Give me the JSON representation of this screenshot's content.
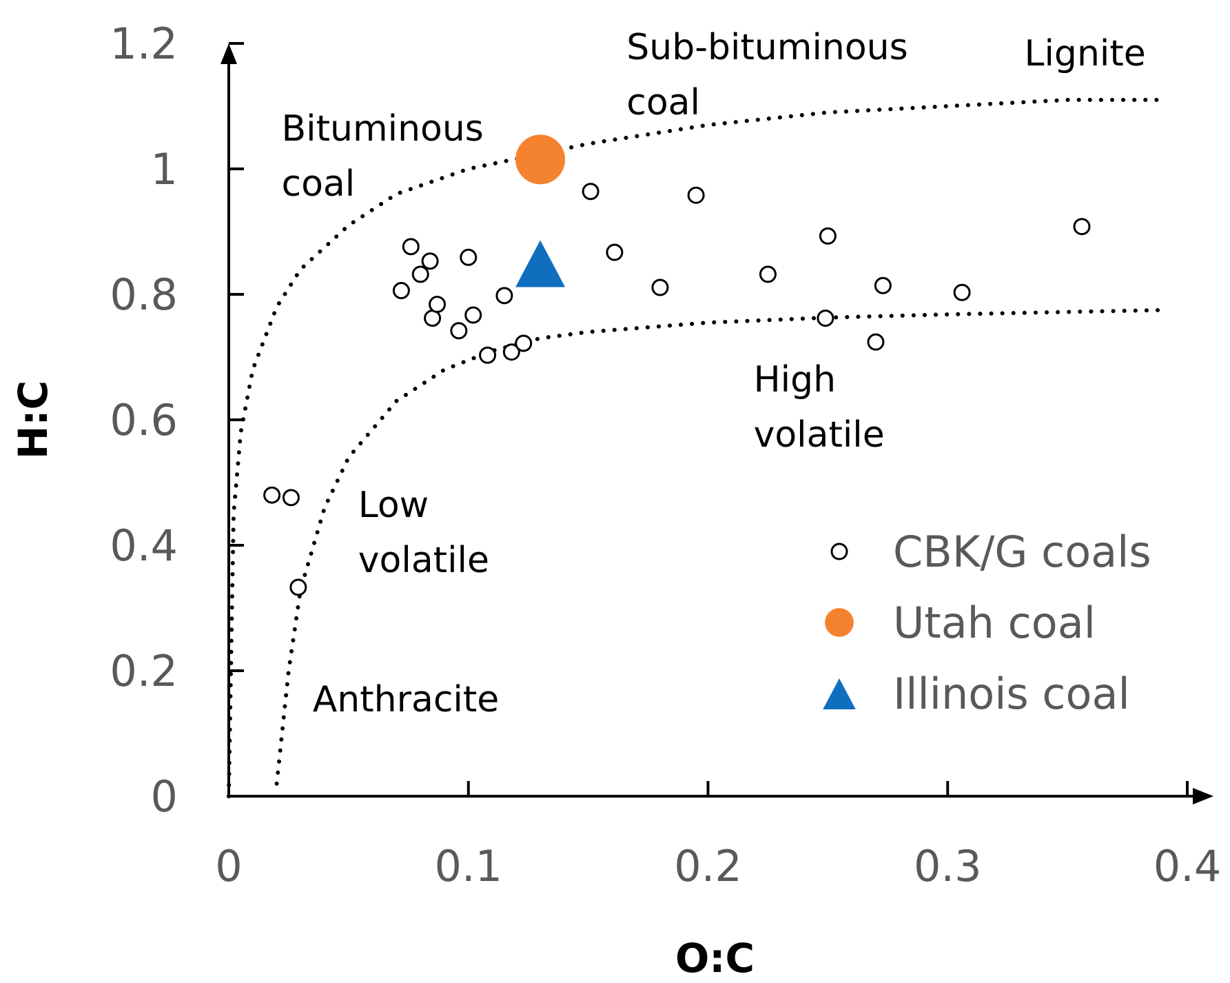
{
  "chart_data": {
    "type": "scatter",
    "title": "",
    "xlabel": "O:C",
    "ylabel": "H:C",
    "xlim": [
      0,
      0.4
    ],
    "ylim": [
      0,
      1.2
    ],
    "x_ticks": [
      "0",
      "0.1",
      "0.2",
      "0.3",
      "0.4"
    ],
    "y_ticks": [
      "0",
      "0.2",
      "0.4",
      "0.6",
      "0.8",
      "1",
      "1.2"
    ],
    "grid": false,
    "legend_position": "lower-right",
    "series": [
      {
        "name": "CBK/G coals",
        "marker": "open-circle",
        "color": "#000000",
        "points": [
          [
            0.018,
            0.48
          ],
          [
            0.026,
            0.476
          ],
          [
            0.029,
            0.333
          ],
          [
            0.072,
            0.806
          ],
          [
            0.076,
            0.876
          ],
          [
            0.08,
            0.832
          ],
          [
            0.084,
            0.853
          ],
          [
            0.085,
            0.762
          ],
          [
            0.087,
            0.784
          ],
          [
            0.096,
            0.742
          ],
          [
            0.1,
            0.859
          ],
          [
            0.102,
            0.767
          ],
          [
            0.108,
            0.703
          ],
          [
            0.115,
            0.798
          ],
          [
            0.118,
            0.708
          ],
          [
            0.123,
            0.722
          ],
          [
            0.151,
            0.964
          ],
          [
            0.161,
            0.867
          ],
          [
            0.18,
            0.811
          ],
          [
            0.195,
            0.958
          ],
          [
            0.225,
            0.832
          ],
          [
            0.249,
            0.762
          ],
          [
            0.25,
            0.893
          ],
          [
            0.27,
            0.724
          ],
          [
            0.273,
            0.814
          ],
          [
            0.306,
            0.803
          ],
          [
            0.356,
            0.908
          ]
        ]
      },
      {
        "name": "Utah coal",
        "marker": "filled-circle",
        "color": "#F5822F",
        "points": [
          [
            0.13,
            1.015
          ]
        ]
      },
      {
        "name": "Illinois coal",
        "marker": "filled-triangle",
        "color": "#0F6EBE",
        "points": [
          [
            0.13,
            0.84
          ]
        ]
      }
    ],
    "boundary_curves": [
      {
        "name": "upper boundary",
        "points": [
          [
            0.0,
            0.0
          ],
          [
            0.002,
            0.45
          ],
          [
            0.005,
            0.58
          ],
          [
            0.01,
            0.68
          ],
          [
            0.02,
            0.78
          ],
          [
            0.03,
            0.84
          ],
          [
            0.05,
            0.91
          ],
          [
            0.07,
            0.96
          ],
          [
            0.1,
            1.0
          ],
          [
            0.15,
            1.04
          ],
          [
            0.2,
            1.07
          ],
          [
            0.25,
            1.09
          ],
          [
            0.3,
            1.1
          ],
          [
            0.35,
            1.11
          ],
          [
            0.39,
            1.11
          ]
        ]
      },
      {
        "name": "lower boundary",
        "points": [
          [
            0.02,
            0.02
          ],
          [
            0.025,
            0.2
          ],
          [
            0.03,
            0.33
          ],
          [
            0.04,
            0.46
          ],
          [
            0.05,
            0.54
          ],
          [
            0.07,
            0.63
          ],
          [
            0.09,
            0.68
          ],
          [
            0.11,
            0.71
          ],
          [
            0.13,
            0.73
          ],
          [
            0.15,
            0.74
          ],
          [
            0.2,
            0.755
          ],
          [
            0.25,
            0.763
          ],
          [
            0.3,
            0.768
          ],
          [
            0.35,
            0.772
          ],
          [
            0.39,
            0.775
          ]
        ]
      }
    ],
    "annotations": [
      {
        "lines": [
          "Sub-bituminous",
          "coal"
        ],
        "x": 0.166,
        "y": 1.175
      },
      {
        "lines": [
          "Lignite"
        ],
        "x": 0.332,
        "y": 1.165
      },
      {
        "lines": [
          "Bituminous",
          "coal"
        ],
        "x": 0.022,
        "y": 1.045
      },
      {
        "lines": [
          "High",
          "volatile"
        ],
        "x": 0.219,
        "y": 0.645
      },
      {
        "lines": [
          "Low",
          "volatile"
        ],
        "x": 0.054,
        "y": 0.445
      },
      {
        "lines": [
          "Anthracite"
        ],
        "x": 0.035,
        "y": 0.135
      }
    ]
  }
}
